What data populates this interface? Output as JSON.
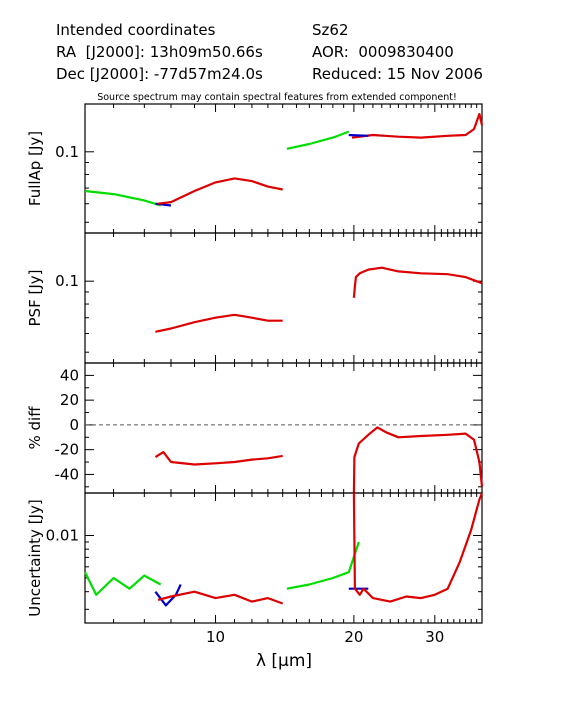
{
  "header": {
    "left": [
      "Intended coordinates",
      "RA  [J2000]: 13h09m50.66s",
      "Dec [J2000]: -77d57m24.0s"
    ],
    "right": [
      "Sz62",
      "AOR:  0009830400",
      "Reduced: 15 Nov 2006"
    ]
  },
  "colors": {
    "sl2": "#00dd00",
    "sl1": "#dd0000",
    "bonus": "#0000cc",
    "lh": "#dd0000"
  },
  "chart_data": {
    "type": "line",
    "title": "Source spectrum may contain spectral features from extended component!",
    "xlabel": "λ [μm]",
    "xscale": "log",
    "xlim": [
      5.2,
      38
    ],
    "xticks": [
      10,
      20,
      30
    ],
    "panels": [
      {
        "id": "fullap",
        "ylabel": "FullAp [Jy]",
        "yscale": "log",
        "ylim": [
          0.045,
          0.16
        ],
        "yticks": [
          0.1
        ],
        "series": [
          {
            "color": "green",
            "x": [
              5.2,
              6.0,
              7.0,
              7.6
            ],
            "y": [
              0.068,
              0.066,
              0.062,
              0.059
            ]
          },
          {
            "color": "blue",
            "x": [
              7.4,
              8.0
            ],
            "y": [
              0.06,
              0.059
            ]
          },
          {
            "color": "red",
            "x": [
              7.5,
              8.0,
              9.0,
              10.0,
              11.0,
              12.0,
              13.0,
              14.0
            ],
            "y": [
              0.06,
              0.061,
              0.068,
              0.074,
              0.077,
              0.075,
              0.071,
              0.069
            ]
          },
          {
            "color": "green",
            "x": [
              14.3,
              16.0,
              18.0,
              19.5
            ],
            "y": [
              0.103,
              0.108,
              0.115,
              0.122
            ]
          },
          {
            "color": "red",
            "x": [
              19.8,
              22.0,
              25.0,
              28.0,
              32.0,
              35.0,
              36.5,
              37.5,
              38.0
            ],
            "y": [
              0.115,
              0.118,
              0.116,
              0.115,
              0.117,
              0.118,
              0.125,
              0.145,
              0.13
            ]
          },
          {
            "color": "blue",
            "x": [
              19.5,
              21.5
            ],
            "y": [
              0.118,
              0.117
            ]
          }
        ]
      },
      {
        "id": "psf",
        "ylabel": "PSF [Jy]",
        "yscale": "log",
        "ylim": [
          0.045,
          0.16
        ],
        "yticks": [
          0.1
        ],
        "series": [
          {
            "color": "red",
            "x": [
              7.4,
              8.0,
              9.0,
              10.0,
              11.0,
              12.0,
              13.0,
              14.0
            ],
            "y": [
              0.061,
              0.063,
              0.067,
              0.07,
              0.072,
              0.07,
              0.068,
              0.068
            ]
          },
          {
            "color": "red",
            "x": [
              20.0,
              20.1,
              20.2,
              20.6,
              21.5,
              23.0,
              25.0,
              28.0,
              32.0,
              35.0,
              38.0
            ],
            "y": [
              0.085,
              0.095,
              0.104,
              0.108,
              0.112,
              0.114,
              0.11,
              0.108,
              0.107,
              0.104,
              0.098
            ]
          }
        ]
      },
      {
        "id": "diff",
        "ylabel": "% diff",
        "yscale": "linear",
        "ylim": [
          -55,
          50
        ],
        "yticks": [
          -40,
          -20,
          0,
          20,
          40
        ],
        "zero_line": true,
        "series": [
          {
            "color": "red",
            "x": [
              7.4,
              7.7,
              8.0,
              9.0,
              10.0,
              11.0,
              12.0,
              13.0,
              14.0
            ],
            "y": [
              -26,
              -22,
              -30,
              -32,
              -31,
              -30,
              -28,
              -27,
              -25
            ]
          },
          {
            "color": "red",
            "x": [
              20.0,
              20.05,
              20.5,
              21.5,
              22.5,
              23.5,
              25.0,
              28.0,
              32.0,
              35.0,
              36.5,
              37.5,
              38.0
            ],
            "y": [
              -55,
              -26,
              -15,
              -8,
              -2,
              -6,
              -10,
              -9,
              -8,
              -7,
              -12,
              -30,
              -50
            ]
          }
        ]
      },
      {
        "id": "unc",
        "ylabel": "Uncertainty [Jy]",
        "yscale": "log",
        "ylim": [
          0.0024,
          0.02
        ],
        "yticks": [
          0.01
        ],
        "series": [
          {
            "color": "green",
            "x": [
              5.2,
              5.5,
              6.0,
              6.5,
              7.0,
              7.6
            ],
            "y": [
              0.0055,
              0.0038,
              0.005,
              0.0042,
              0.0052,
              0.0045
            ]
          },
          {
            "color": "blue",
            "x": [
              7.4,
              7.8,
              8.2,
              8.4
            ],
            "y": [
              0.004,
              0.0032,
              0.0038,
              0.0045
            ]
          },
          {
            "color": "red",
            "x": [
              7.5,
              8.0,
              9.0,
              10.0,
              11.0,
              12.0,
              13.0,
              14.0
            ],
            "y": [
              0.0035,
              0.0037,
              0.004,
              0.0036,
              0.0038,
              0.0034,
              0.0036,
              0.0033
            ]
          },
          {
            "color": "green",
            "x": [
              14.3,
              16.0,
              18.0,
              19.5,
              20.5
            ],
            "y": [
              0.0042,
              0.0045,
              0.005,
              0.0055,
              0.009
            ]
          },
          {
            "color": "blue",
            "x": [
              19.5,
              21.5
            ],
            "y": [
              0.0042,
              0.0042
            ]
          },
          {
            "color": "red",
            "x": [
              20.0,
              20.1,
              20.6,
              21.0,
              22.0,
              24.0,
              26.0,
              28.0,
              30.0,
              32.0,
              34.0,
              36.0,
              37.5,
              38.0
            ],
            "y": [
              0.02,
              0.0042,
              0.0038,
              0.0042,
              0.0036,
              0.0034,
              0.0037,
              0.0036,
              0.0038,
              0.0042,
              0.0065,
              0.011,
              0.018,
              0.02
            ]
          }
        ]
      }
    ]
  }
}
